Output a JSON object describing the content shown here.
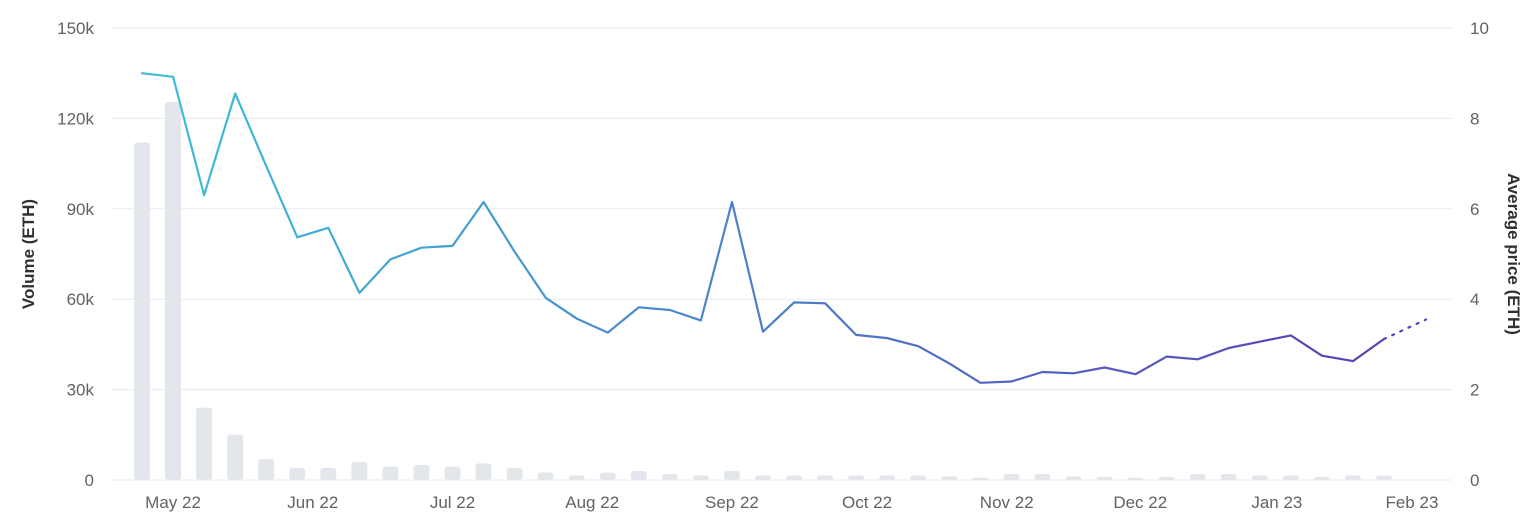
{
  "chart_data": {
    "type": "bar+line",
    "y_left": {
      "label": "Volume (ETH)",
      "ticks": [
        "0",
        "30k",
        "60k",
        "90k",
        "120k",
        "150k"
      ],
      "tick_values": [
        0,
        30000,
        60000,
        90000,
        120000,
        150000
      ],
      "range": [
        0,
        150000
      ]
    },
    "y_right": {
      "label": "Average price (ETH)",
      "ticks": [
        "0",
        "2",
        "4",
        "6",
        "8",
        "10"
      ],
      "tick_values": [
        0,
        2,
        4,
        6,
        8,
        10
      ],
      "range": [
        0,
        10
      ]
    },
    "x_axis": {
      "ticks": [
        "May 22",
        "Jun 22",
        "Jul 22",
        "Aug 22",
        "Sep 22",
        "Oct 22",
        "Nov 22",
        "Dec 22",
        "Jan 23",
        "Feb 23"
      ],
      "tick_positions": [
        1,
        5.5,
        10,
        14.5,
        19,
        23.35,
        27.85,
        32.15,
        36.55,
        40.9
      ]
    },
    "grid": true,
    "series": [
      {
        "name": "Volume (ETH)",
        "kind": "bar",
        "axis": "left",
        "color": "#e3e6ea",
        "values": [
          112000,
          125500,
          24000,
          15000,
          7000,
          4000,
          4000,
          6000,
          4500,
          5000,
          4500,
          5500,
          4000,
          2500,
          1500,
          2500,
          3000,
          2000,
          1500,
          3000,
          1500,
          1500,
          1500,
          1500,
          1500,
          1500,
          1200,
          800,
          2000,
          2000,
          1200,
          1000,
          800,
          1000,
          2000,
          2000,
          1500,
          1500,
          1000,
          1500,
          1500
        ]
      },
      {
        "name": "Average price (ETH)",
        "kind": "line",
        "axis": "right",
        "color_gradient": [
          "#3dbfd9",
          "#5a3fb8"
        ],
        "values": [
          9.0,
          8.92,
          6.3,
          8.55,
          6.95,
          5.37,
          5.58,
          4.14,
          4.88,
          5.14,
          5.18,
          6.15,
          5.05,
          4.03,
          3.57,
          3.26,
          3.82,
          3.76,
          3.53,
          6.15,
          3.28,
          3.93,
          3.91,
          3.21,
          3.14,
          2.96,
          2.58,
          2.15,
          2.18,
          2.39,
          2.36,
          2.49,
          2.34,
          2.73,
          2.67,
          2.92,
          3.06,
          3.2,
          2.75,
          2.63,
          3.12
        ],
        "projection": [
          3.12,
          3.55
        ]
      }
    ]
  }
}
